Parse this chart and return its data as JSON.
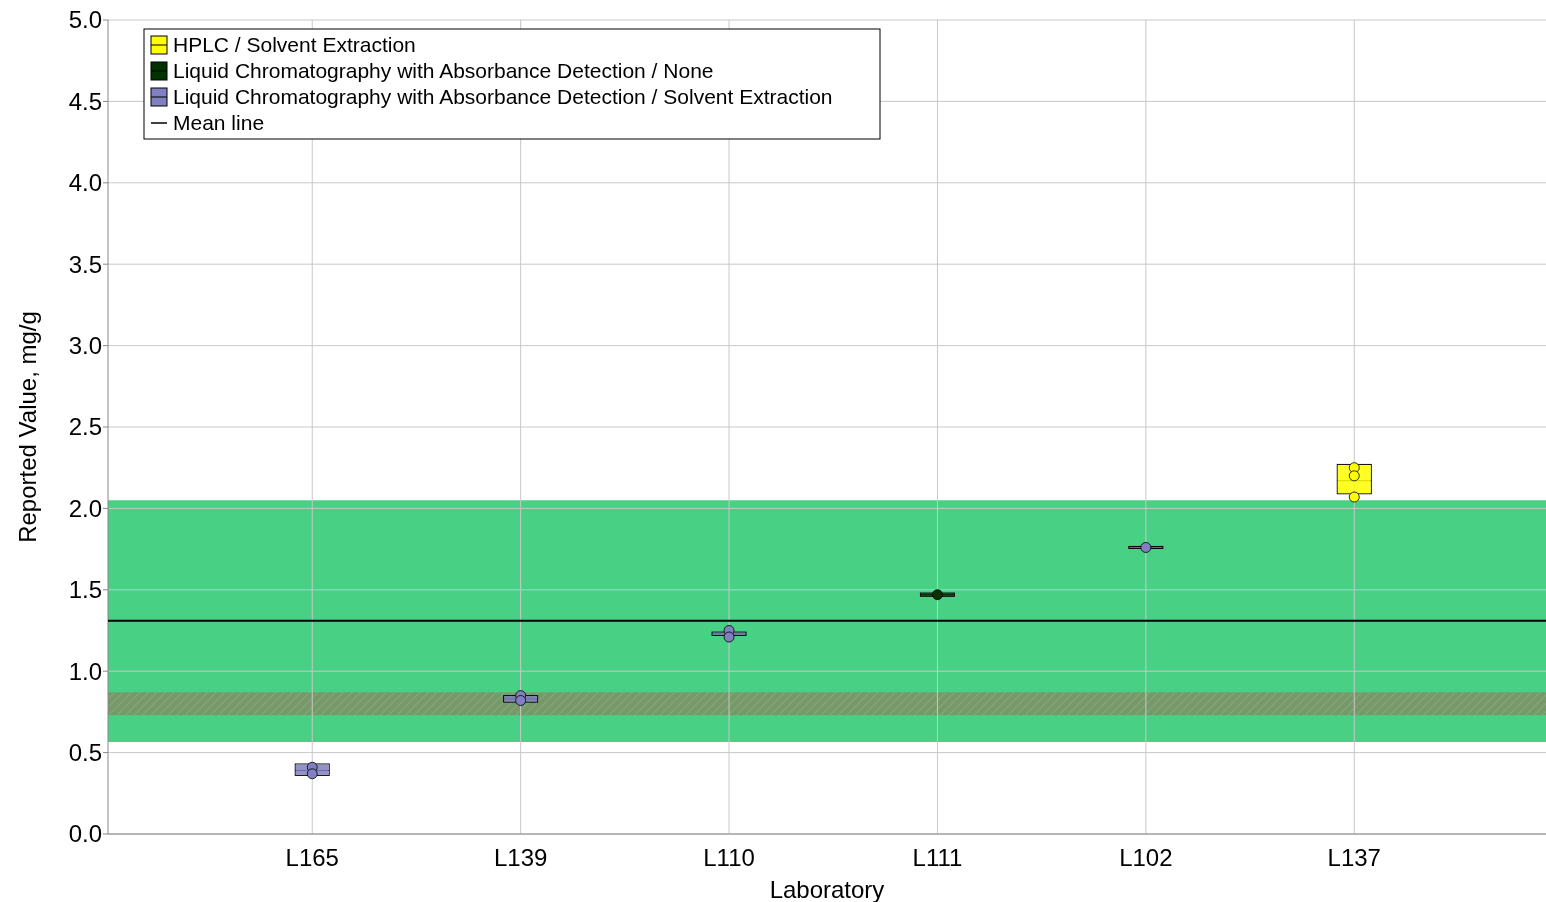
{
  "chart_data": {
    "type": "box",
    "xlabel": "Laboratory",
    "ylabel": "Reported Value, mg/g",
    "categories": [
      "L165",
      "L139",
      "L110",
      "L111",
      "L102",
      "L137"
    ],
    "ylim": [
      0,
      5
    ],
    "yticks": [
      {
        "value": 0,
        "label": "0.0"
      },
      {
        "value": 0.5,
        "label": "0.5"
      },
      {
        "value": 1,
        "label": "1.0"
      },
      {
        "value": 1.5,
        "label": "1.5"
      },
      {
        "value": 2,
        "label": "2.0"
      },
      {
        "value": 2.5,
        "label": "2.5"
      },
      {
        "value": 3,
        "label": "3.0"
      },
      {
        "value": 3.5,
        "label": "3.5"
      },
      {
        "value": 4,
        "label": "4.0"
      },
      {
        "value": 4.5,
        "label": "4.5"
      },
      {
        "value": 5,
        "label": "5.0"
      }
    ],
    "grid": true,
    "legend": "top left",
    "series": [
      {
        "name": "HPLC / Solvent Extraction",
        "color": "#ffff00",
        "boxes": [
          null,
          null,
          null,
          null,
          null,
          {
            "low": 2.09,
            "q1": 2.09,
            "median": 2.17,
            "q3": 2.27,
            "high": 2.27
          }
        ]
      },
      {
        "name": "Liquid Chromatography with Absorbance Detection / None",
        "color": "#003300",
        "boxes": [
          null,
          null,
          null,
          {
            "low": 1.46,
            "q1": 1.46,
            "median": 1.47,
            "q3": 1.48,
            "high": 1.48
          },
          null,
          null
        ]
      },
      {
        "name": "Liquid Chromatography with Absorbance Detection / Solvent Extraction",
        "color": "#8080c0",
        "boxes": [
          {
            "low": 0.36,
            "q1": 0.36,
            "median": 0.39,
            "q3": 0.43,
            "high": 0.43
          },
          {
            "low": 0.81,
            "q1": 0.81,
            "median": 0.83,
            "q3": 0.85,
            "high": 0.85
          },
          {
            "low": 1.22,
            "q1": 1.22,
            "median": 1.23,
            "q3": 1.24,
            "high": 1.24
          },
          null,
          {
            "low": 1.76,
            "q1": 1.76,
            "median": 1.76,
            "q3": 1.76,
            "high": 1.76
          },
          null
        ]
      },
      {
        "type": "scatter",
        "color": "#ffff00",
        "x": [
          "L137",
          "L137",
          "L137"
        ],
        "values": [
          2.25,
          2.2,
          2.07
        ]
      },
      {
        "type": "scatter",
        "color": "#003300",
        "x": [
          "L111"
        ],
        "values": [
          1.47
        ]
      },
      {
        "type": "scatter",
        "color": "#8080c0",
        "x": [
          "L165",
          "L165",
          "L139",
          "L139",
          "L110",
          "L110",
          "L102"
        ],
        "values": [
          0.41,
          0.37,
          0.85,
          0.82,
          1.25,
          1.21,
          1.76
        ]
      }
    ],
    "marker": "circle",
    "ref_lines": [
      {
        "axis": "y",
        "value": 1.31,
        "label": "Mean line",
        "color": "#000000"
      }
    ],
    "bands": [
      {
        "axis": "y",
        "from": 0.565,
        "to": 2.05,
        "color": "#48d085"
      },
      {
        "axis": "y",
        "from": 0.73,
        "to": 0.87,
        "color": "#77996a"
      }
    ]
  }
}
